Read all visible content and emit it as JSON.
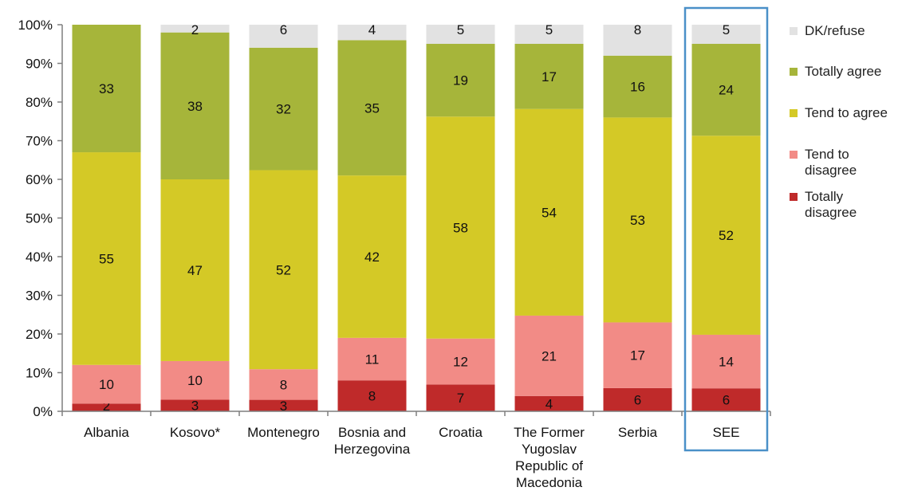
{
  "chart_data": {
    "type": "bar",
    "stacked": true,
    "normalized": true,
    "categories": [
      [
        "Albania"
      ],
      [
        "Kosovo*"
      ],
      [
        "Montenegro"
      ],
      [
        "Bosnia and",
        "Herzegovina"
      ],
      [
        "Croatia"
      ],
      [
        "The Former",
        "Yugoslav",
        "Republic of",
        "Macedonia"
      ],
      [
        "Serbia"
      ],
      [
        "SEE"
      ]
    ],
    "highlighted_category_index": 7,
    "series": [
      {
        "name": "Totally disagree",
        "color": "#bf2a2a",
        "values": [
          2,
          3,
          3,
          8,
          7,
          4,
          6,
          6
        ]
      },
      {
        "name": "Tend to disagree",
        "color": "#f28b86",
        "values": [
          10,
          10,
          8,
          11,
          12,
          21,
          17,
          14
        ]
      },
      {
        "name": "Tend to agree",
        "color": "#d4c926",
        "values": [
          55,
          47,
          52,
          42,
          58,
          54,
          53,
          52
        ]
      },
      {
        "name": "Totally agree",
        "color": "#a6b53a",
        "values": [
          33,
          38,
          32,
          35,
          19,
          17,
          16,
          24
        ]
      },
      {
        "name": "DK/refuse",
        "color": "#e2e2e2",
        "values": [
          0,
          2,
          6,
          4,
          5,
          5,
          8,
          5
        ]
      }
    ],
    "legend_order": [
      "DK/refuse",
      "Totally agree",
      "Tend to agree",
      "Tend to disagree",
      "Totally disagree"
    ],
    "legend_lines": {
      "DK/refuse": [
        "DK/refuse"
      ],
      "Totally agree": [
        "Totally agree"
      ],
      "Tend to agree": [
        "Tend to agree"
      ],
      "Tend to disagree": [
        "Tend to",
        "disagree"
      ],
      "Totally disagree": [
        "Totally",
        "disagree"
      ]
    },
    "y_ticks": [
      "0%",
      "10%",
      "20%",
      "30%",
      "40%",
      "50%",
      "60%",
      "70%",
      "80%",
      "90%",
      "100%"
    ],
    "ylim": [
      0,
      100
    ],
    "legend_position": "right",
    "grid": false,
    "highlight_color": "#4a90c8"
  }
}
